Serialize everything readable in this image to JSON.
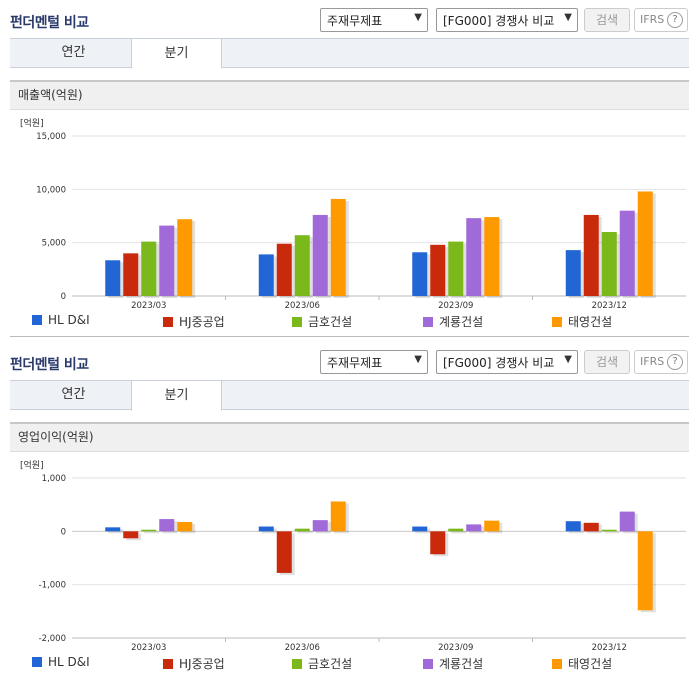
{
  "colors": [
    "#2266d6",
    "#c92a0c",
    "#7ab81b",
    "#a06bd8",
    "#ff9900"
  ],
  "panels": [
    {
      "title": "펀더멘털 비교",
      "select1": "주재무제표",
      "select2": "[FG000] 경쟁사 비교",
      "search_label": "검색",
      "ifrs_label": "IFRS",
      "help_label": "?",
      "tabs": [
        "연간",
        "분기"
      ],
      "section_title": "매출액(억원)",
      "chart_data": {
        "type": "bar",
        "unit_label": "[억원]",
        "categories": [
          "2023/03",
          "2023/06",
          "2023/09",
          "2023/12"
        ],
        "ylim": [
          0,
          15000
        ],
        "yticks": [
          0,
          5000,
          10000,
          15000
        ],
        "ytick_labels": [
          "0",
          "5,000",
          "10,000",
          "15,000"
        ],
        "grid": true,
        "legend_position": "bottom",
        "series": [
          {
            "name": "HL D&I",
            "values": [
              3350,
              3900,
              4100,
              4300
            ]
          },
          {
            "name": "HJ중공업",
            "values": [
              4000,
              4900,
              4800,
              7600
            ]
          },
          {
            "name": "금호건설",
            "values": [
              5100,
              5700,
              5100,
              6000
            ]
          },
          {
            "name": "계룡건설",
            "values": [
              6600,
              7600,
              7300,
              8000
            ]
          },
          {
            "name": "태영건설",
            "values": [
              7200,
              9100,
              7400,
              9800
            ]
          }
        ]
      }
    },
    {
      "title": "펀더멘털 비교",
      "select1": "주재무제표",
      "select2": "[FG000] 경쟁사 비교",
      "search_label": "검색",
      "ifrs_label": "IFRS",
      "help_label": "?",
      "tabs": [
        "연간",
        "분기"
      ],
      "section_title": "영업이익(억원)",
      "chart_data": {
        "type": "bar",
        "unit_label": "[억원]",
        "categories": [
          "2023/03",
          "2023/06",
          "2023/09",
          "2023/12"
        ],
        "ylim": [
          -2000,
          1000
        ],
        "yticks": [
          -2000,
          -1000,
          0,
          1000
        ],
        "ytick_labels": [
          "-2,000",
          "-1,000",
          "0",
          "1,000"
        ],
        "grid": true,
        "legend_position": "bottom",
        "series": [
          {
            "name": "HL D&I",
            "values": [
              75,
              90,
              90,
              190
            ]
          },
          {
            "name": "HJ중공업",
            "values": [
              -130,
              -780,
              -430,
              160
            ]
          },
          {
            "name": "금호건설",
            "values": [
              30,
              50,
              50,
              30
            ]
          },
          {
            "name": "계룡건설",
            "values": [
              230,
              210,
              130,
              370
            ]
          },
          {
            "name": "태영건설",
            "values": [
              175,
              560,
              200,
              -1480
            ]
          }
        ]
      }
    }
  ]
}
